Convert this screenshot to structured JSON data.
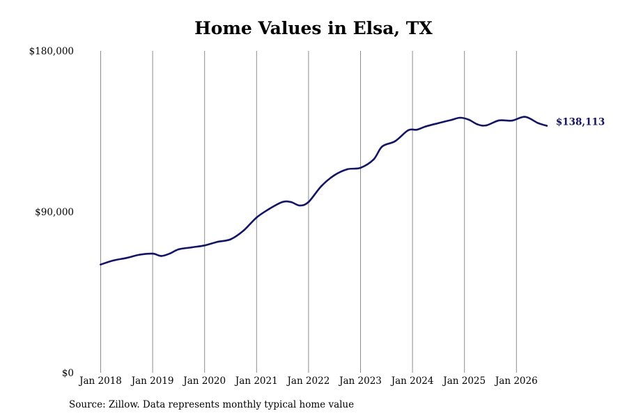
{
  "colors": {
    "line": "#141464",
    "grid": "#8c8c8c",
    "text": "#000000"
  },
  "source_note": "Source: Zillow. Data represents monthly typical home value",
  "chart_data": {
    "type": "line",
    "title": "Home Values in Elsa, TX",
    "xlabel": "",
    "ylabel": "",
    "ylim": [
      0,
      180000
    ],
    "y_ticks": [
      {
        "value": 0,
        "label": "$0"
      },
      {
        "value": 90000,
        "label": "$90,000"
      },
      {
        "value": 180000,
        "label": "$180,000"
      }
    ],
    "x_ticks": [
      {
        "value": "2018-01",
        "label": "Jan 2018"
      },
      {
        "value": "2019-01",
        "label": "Jan 2019"
      },
      {
        "value": "2020-01",
        "label": "Jan 2020"
      },
      {
        "value": "2021-01",
        "label": "Jan 2021"
      },
      {
        "value": "2022-01",
        "label": "Jan 2022"
      },
      {
        "value": "2023-01",
        "label": "Jan 2023"
      },
      {
        "value": "2024-01",
        "label": "Jan 2024"
      },
      {
        "value": "2025-01",
        "label": "Jan 2025"
      },
      {
        "value": "2026-01",
        "label": "Jan 2026"
      }
    ],
    "grid": "vertical",
    "end_label": "$138,113",
    "series": [
      {
        "points": [
          [
            "2018-01",
            60500
          ],
          [
            "2018-04",
            62800
          ],
          [
            "2018-07",
            64200
          ],
          [
            "2018-10",
            66000
          ],
          [
            "2019-01",
            66600
          ],
          [
            "2019-03",
            65300
          ],
          [
            "2019-05",
            66700
          ],
          [
            "2019-07",
            69000
          ],
          [
            "2019-10",
            70100
          ],
          [
            "2020-01",
            71200
          ],
          [
            "2020-04",
            73200
          ],
          [
            "2020-07",
            74600
          ],
          [
            "2020-10",
            79500
          ],
          [
            "2021-01",
            86800
          ],
          [
            "2021-04",
            91700
          ],
          [
            "2021-07",
            95500
          ],
          [
            "2021-09",
            95400
          ],
          [
            "2021-11",
            93500
          ],
          [
            "2022-01",
            95500
          ],
          [
            "2022-04",
            104500
          ],
          [
            "2022-07",
            110500
          ],
          [
            "2022-10",
            113800
          ],
          [
            "2023-01",
            114600
          ],
          [
            "2023-04",
            119200
          ],
          [
            "2023-06",
            126500
          ],
          [
            "2023-09",
            129500
          ],
          [
            "2023-12",
            135600
          ],
          [
            "2024-02",
            135900
          ],
          [
            "2024-04",
            137700
          ],
          [
            "2024-07",
            139600
          ],
          [
            "2024-10",
            141400
          ],
          [
            "2024-12",
            142600
          ],
          [
            "2025-02",
            141500
          ],
          [
            "2025-04",
            138900
          ],
          [
            "2025-06",
            138300
          ],
          [
            "2025-09",
            141100
          ],
          [
            "2025-12",
            141000
          ],
          [
            "2026-03",
            143100
          ],
          [
            "2026-06",
            139600
          ],
          [
            "2026-08",
            138113
          ]
        ]
      }
    ]
  }
}
